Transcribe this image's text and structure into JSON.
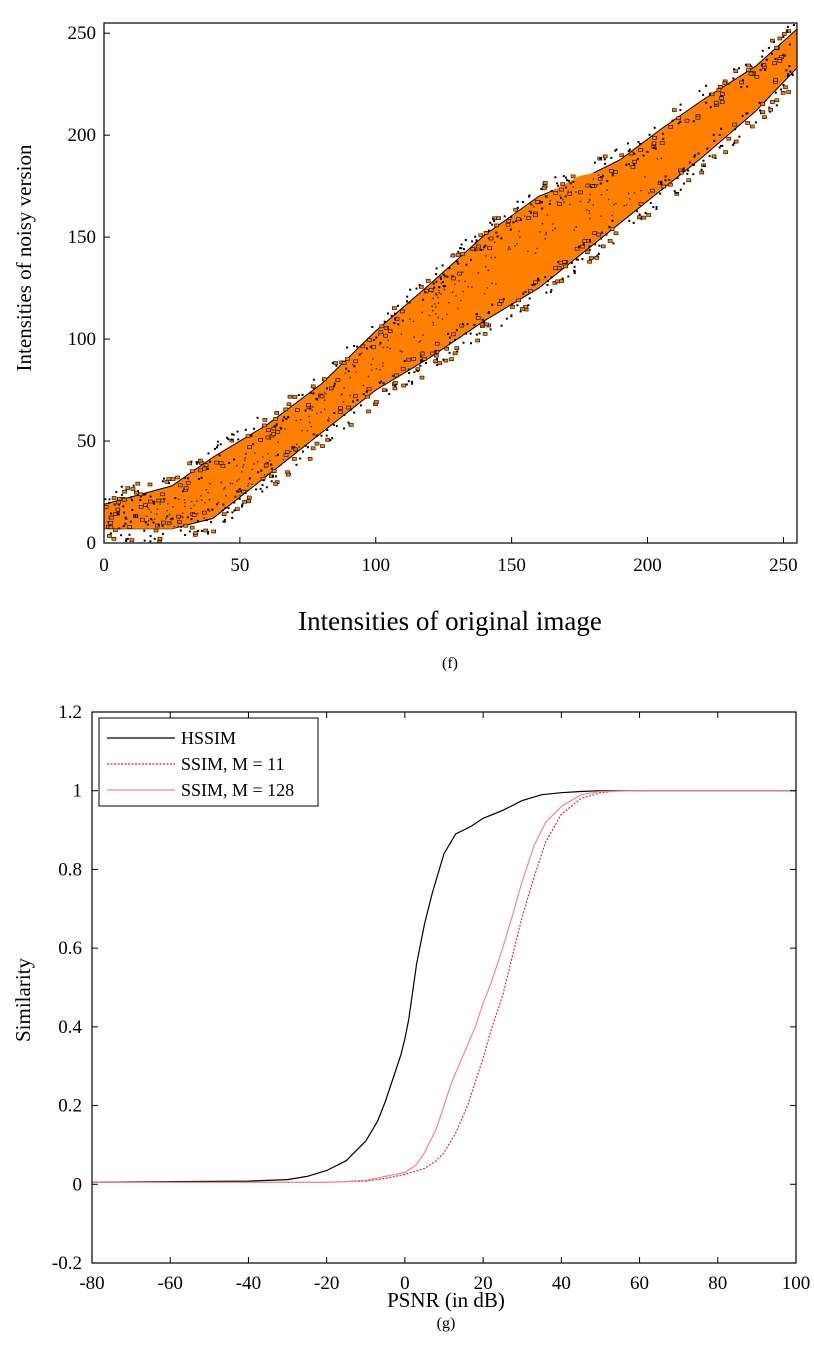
{
  "chart_data": [
    {
      "type": "heatmap",
      "panel_label": "(f)",
      "xlabel": "Intensities of original image",
      "ylabel": "Intensities of noisy version",
      "xlim": [
        0,
        255
      ],
      "ylim": [
        0,
        255
      ],
      "xticks": [
        0,
        50,
        100,
        150,
        200,
        250
      ],
      "yticks": [
        0,
        50,
        100,
        150,
        200,
        250
      ],
      "fill_color": "#ff8000",
      "edge_color": "#000000",
      "band": {
        "x": [
          0,
          25,
          40,
          60,
          80,
          100,
          120,
          140,
          160,
          175,
          190,
          205,
          220,
          240,
          255
        ],
        "y_upper": [
          19,
          28,
          42,
          58,
          78,
          104,
          127,
          151,
          170,
          178,
          188,
          203,
          217,
          234,
          252
        ],
        "y_lower": [
          7,
          7,
          12,
          33,
          54,
          75,
          91,
          109,
          125,
          141,
          157,
          173,
          189,
          212,
          233
        ]
      },
      "solid_band": {
        "x": [
          0,
          25,
          40,
          55,
          70,
          85,
          100,
          115,
          130,
          145,
          160,
          175,
          190,
          205
        ],
        "y_upper": [
          18,
          20,
          33,
          47,
          62,
          80,
          103,
          118,
          135,
          152,
          169,
          180,
          184,
          192
        ],
        "y_lower": [
          7,
          7,
          13,
          28,
          45,
          65,
          83,
          98,
          115,
          126,
          143,
          154,
          162,
          174
        ]
      }
    },
    {
      "type": "line",
      "panel_label": "(g)",
      "xlabel": "PSNR (in dB)",
      "ylabel": "Similarity",
      "xlim": [
        -80,
        100
      ],
      "ylim": [
        -0.2,
        1.2
      ],
      "xticks": [
        -80,
        -60,
        -40,
        -20,
        0,
        20,
        40,
        60,
        80,
        100
      ],
      "yticks": [
        -0.2,
        0,
        0.2,
        0.4,
        0.6,
        0.8,
        1,
        1.2
      ],
      "ytick_labels": [
        "-0.2",
        "0",
        "0.2",
        "0.4",
        "0.6",
        "0.8",
        "1",
        "1.2"
      ],
      "grid": false,
      "legend_position": "top-left",
      "series": [
        {
          "name": "HSSIM",
          "color": "#000000",
          "style": "solid",
          "x": [
            -80,
            -40,
            -30,
            -25,
            -20,
            -15,
            -10,
            -7,
            -5,
            -3,
            -1,
            0,
            1,
            3,
            5,
            7,
            10,
            13,
            17,
            20,
            25,
            30,
            35,
            40,
            45,
            50,
            60,
            100
          ],
          "y": [
            0.005,
            0.008,
            0.012,
            0.02,
            0.035,
            0.06,
            0.11,
            0.16,
            0.21,
            0.27,
            0.33,
            0.37,
            0.42,
            0.56,
            0.66,
            0.74,
            0.84,
            0.89,
            0.91,
            0.93,
            0.95,
            0.975,
            0.99,
            0.995,
            0.998,
            1.0,
            1.0,
            1.0
          ]
        },
        {
          "name": "SSIM, M = 11",
          "color": "#e02020",
          "style": "dashed",
          "x": [
            -80,
            -20,
            -10,
            -5,
            0,
            5,
            8,
            10,
            13,
            16,
            18,
            20,
            22,
            25,
            28,
            30,
            33,
            36,
            40,
            45,
            50,
            55,
            60,
            100
          ],
          "y": [
            0.005,
            0.005,
            0.008,
            0.015,
            0.025,
            0.04,
            0.06,
            0.08,
            0.13,
            0.2,
            0.26,
            0.32,
            0.39,
            0.48,
            0.6,
            0.68,
            0.78,
            0.87,
            0.94,
            0.98,
            0.995,
            1.0,
            1.0,
            1.0
          ]
        },
        {
          "name": "SSIM, M = 128",
          "color": "#f08a8a",
          "style": "solid",
          "x": [
            -80,
            -20,
            -10,
            -5,
            0,
            3,
            5,
            8,
            10,
            12,
            15,
            18,
            20,
            22,
            25,
            28,
            30,
            33,
            36,
            40,
            45,
            50,
            60,
            100
          ],
          "y": [
            0.005,
            0.005,
            0.01,
            0.02,
            0.03,
            0.05,
            0.08,
            0.14,
            0.2,
            0.26,
            0.33,
            0.4,
            0.46,
            0.51,
            0.6,
            0.7,
            0.77,
            0.86,
            0.92,
            0.96,
            0.99,
            0.998,
            1.0,
            1.0
          ]
        }
      ]
    }
  ]
}
